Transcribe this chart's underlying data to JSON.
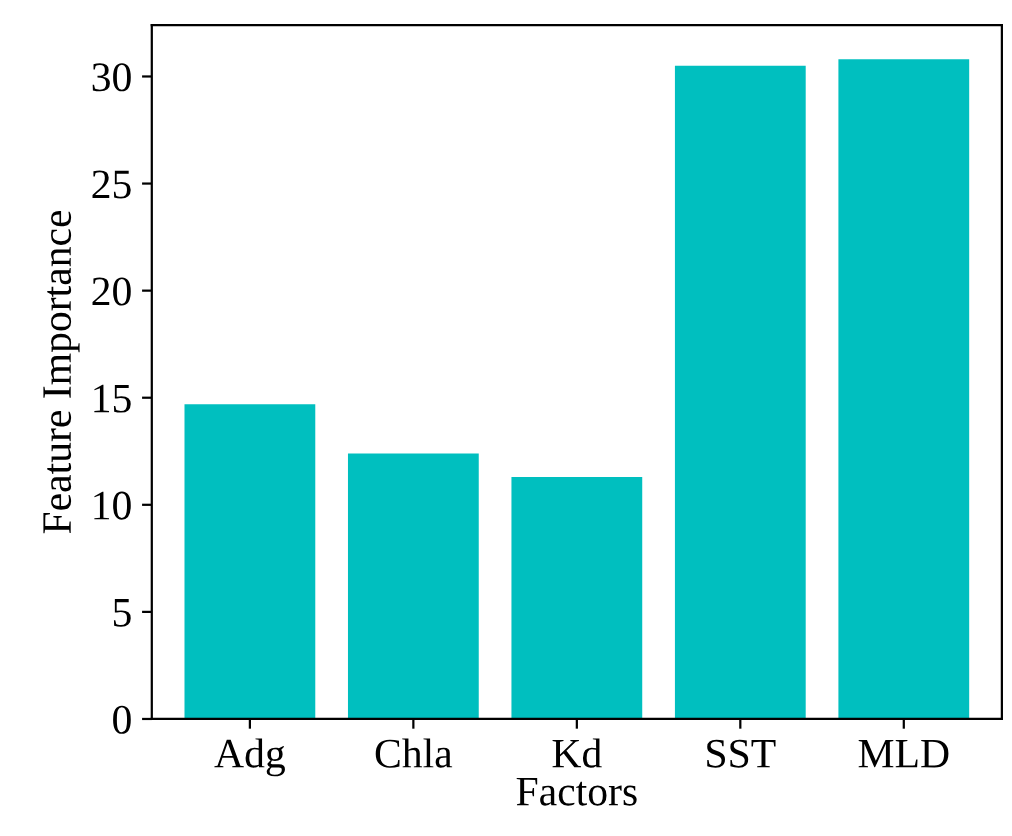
{
  "chart_data": {
    "type": "bar",
    "xlabel": "Factors",
    "ylabel": "Feature Importance",
    "categories": [
      "Adg",
      "Chla",
      "Kd",
      "SST",
      "MLD"
    ],
    "values": [
      14.7,
      12.4,
      11.3,
      30.5,
      30.8
    ],
    "color": "#00bfbf",
    "ylim": [
      0,
      32.4
    ],
    "yticks": [
      0,
      5,
      10,
      15,
      20,
      25,
      30
    ],
    "grid": false,
    "legend": false
  }
}
